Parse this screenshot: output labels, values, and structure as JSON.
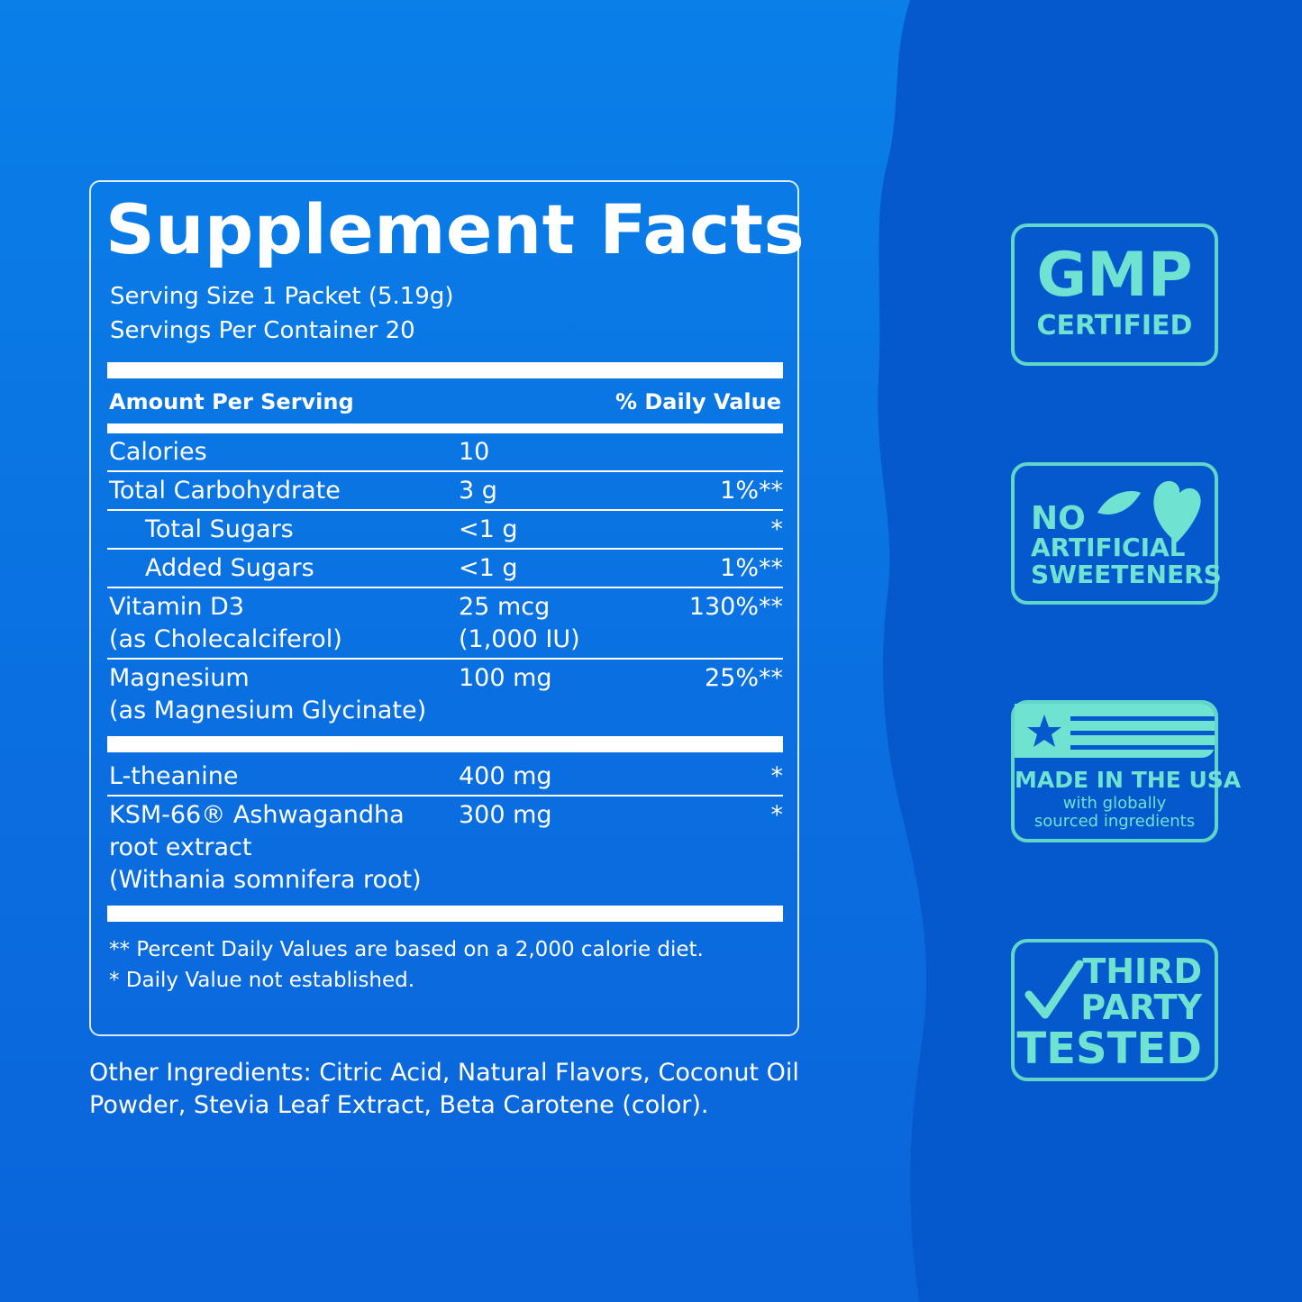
{
  "facts": {
    "title": "Supplement Facts",
    "serving_size": "Serving Size 1 Packet (5.19g)",
    "servings_per_container": "Servings Per Container 20",
    "header": {
      "amount": "Amount Per Serving",
      "daily_value": "% Daily Value"
    },
    "sections": [
      [
        {
          "name": [
            "Calories"
          ],
          "amount": [
            "10"
          ]
        },
        {
          "name": [
            "Total Carbohydrate"
          ],
          "amount": [
            "3 g"
          ],
          "dv": "1%**"
        },
        {
          "name": [
            "Total Sugars"
          ],
          "amount": [
            "<1 g"
          ],
          "dv": "*",
          "indent": true
        },
        {
          "name": [
            "Added Sugars"
          ],
          "amount": [
            "<1 g"
          ],
          "dv": "1%**",
          "indent": true
        },
        {
          "name": [
            "Vitamin D3",
            "(as Cholecalciferol)"
          ],
          "amount": [
            "25 mcg",
            "(1,000 IU)"
          ],
          "dv": "130%**"
        },
        {
          "name": [
            "Magnesium",
            "(as Magnesium Glycinate)"
          ],
          "amount": [
            "100 mg"
          ],
          "dv": "25%**"
        }
      ],
      [
        {
          "name": [
            "L-theanine"
          ],
          "amount": [
            "400 mg"
          ],
          "dv": "*"
        },
        {
          "name": [
            "KSM-66® Ashwagandha",
            "root extract",
            "(Withania somnifera root)"
          ],
          "amount": [
            "300 mg"
          ],
          "dv": "*"
        }
      ]
    ],
    "footnotes": [
      "** Percent Daily Values are based on a 2,000 calorie diet.",
      "* Daily Value not established."
    ]
  },
  "other_ingredients": [
    "Other Ingredients: Citric Acid, Natural Flavors, Coconut Oil",
    "Powder, Stevia Leaf Extract, Beta Carotene (color)."
  ],
  "badges": [
    {
      "lines": [
        "GMP",
        "CERTIFIED"
      ]
    },
    {
      "lines": [
        "NO",
        "ARTIFICIAL",
        "SWEETENERS"
      ]
    },
    {
      "lines": [
        "MADE IN THE USA",
        "with globally",
        "sourced ingredients"
      ]
    },
    {
      "lines": [
        "THIRD",
        "PARTY",
        "TESTED"
      ]
    }
  ]
}
